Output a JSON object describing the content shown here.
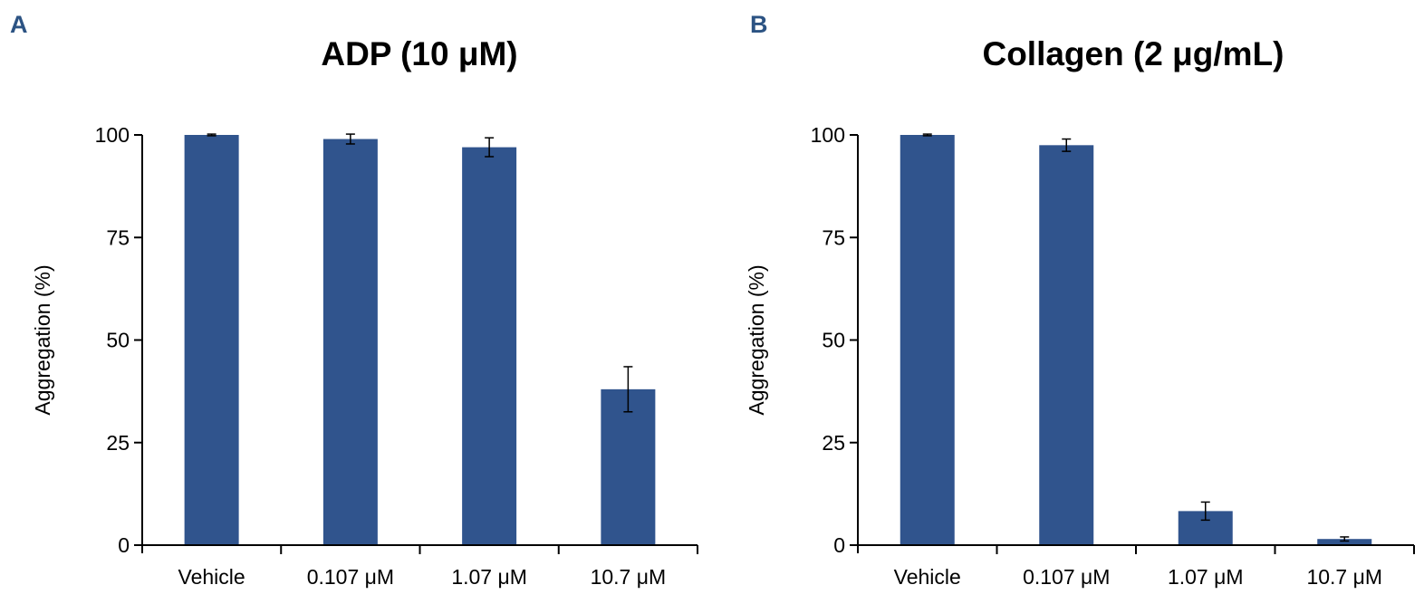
{
  "colors": {
    "bar": "#30548d",
    "axis": "#000000",
    "panel_letter": "#2c5383"
  },
  "panels": [
    {
      "letter": "A",
      "chart_data": {
        "type": "bar",
        "title": "ADP (10 μM)",
        "xlabel": "",
        "ylabel": "Aggregation (%)",
        "categories": [
          "Vehicle",
          "0.107 μM",
          "1.07 μM",
          "10.7 μM"
        ],
        "values": [
          100,
          99,
          97,
          38
        ],
        "errors": [
          0.2,
          1.2,
          2.3,
          5.5
        ],
        "ylim": [
          0,
          100
        ],
        "yticks": [
          0,
          25,
          50,
          75,
          100
        ],
        "ytick_labels": [
          "0",
          "25",
          "50",
          "75",
          "100"
        ],
        "grid": false,
        "legend": "none"
      }
    },
    {
      "letter": "B",
      "chart_data": {
        "type": "bar",
        "title": "Collagen (2 μg/mL)",
        "xlabel": "",
        "ylabel": "Aggregation (%)",
        "categories": [
          "Vehicle",
          "0.107 μM",
          "1.07 μM",
          "10.7 μM"
        ],
        "values": [
          100,
          97.5,
          8.3,
          1.5
        ],
        "errors": [
          0.2,
          1.5,
          2.2,
          0.5
        ],
        "ylim": [
          0,
          100
        ],
        "yticks": [
          0,
          25,
          50,
          75,
          100
        ],
        "ytick_labels": [
          "0",
          "25",
          "50",
          "75",
          "100"
        ],
        "grid": false,
        "legend": "none"
      }
    }
  ]
}
